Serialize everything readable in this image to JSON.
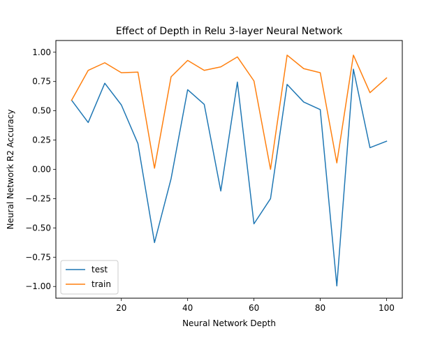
{
  "chart_data": {
    "type": "line",
    "title": "Effect of Depth in Relu 3-layer Neural Network",
    "xlabel": "Neural Network Depth",
    "ylabel": "Neural Network R2 Accuracy",
    "xlim": [
      0.25,
      104.75
    ],
    "ylim": [
      -1.1,
      1.1
    ],
    "x": [
      5,
      10,
      15,
      20,
      25,
      30,
      35,
      40,
      45,
      50,
      55,
      60,
      65,
      70,
      75,
      80,
      85,
      90,
      95,
      100
    ],
    "xticks": [
      20,
      40,
      60,
      80,
      100
    ],
    "yticks": [
      -1.0,
      -0.75,
      -0.5,
      -0.25,
      0.0,
      0.25,
      0.5,
      0.75,
      1.0
    ],
    "xtick_labels": [
      "20",
      "40",
      "60",
      "80",
      "100"
    ],
    "ytick_labels": [
      "−1.00",
      "−0.75",
      "−0.50",
      "−0.25",
      "0.00",
      "0.25",
      "0.50",
      "0.75",
      "1.00"
    ],
    "grid": false,
    "legend": "lower-left",
    "series": [
      {
        "name": "test",
        "color": "#1f77b4",
        "values": [
          0.59,
          0.4,
          0.735,
          0.55,
          0.22,
          -0.625,
          -0.08,
          0.68,
          0.555,
          -0.185,
          0.745,
          -0.465,
          -0.25,
          0.725,
          0.575,
          0.51,
          -0.995,
          0.855,
          0.185,
          0.24
        ]
      },
      {
        "name": "train",
        "color": "#ff7f0e",
        "values": [
          0.59,
          0.845,
          0.91,
          0.825,
          0.83,
          0.01,
          0.79,
          0.93,
          0.845,
          0.875,
          0.96,
          0.755,
          0.0,
          0.975,
          0.86,
          0.825,
          0.055,
          0.975,
          0.655,
          0.78
        ]
      }
    ]
  }
}
